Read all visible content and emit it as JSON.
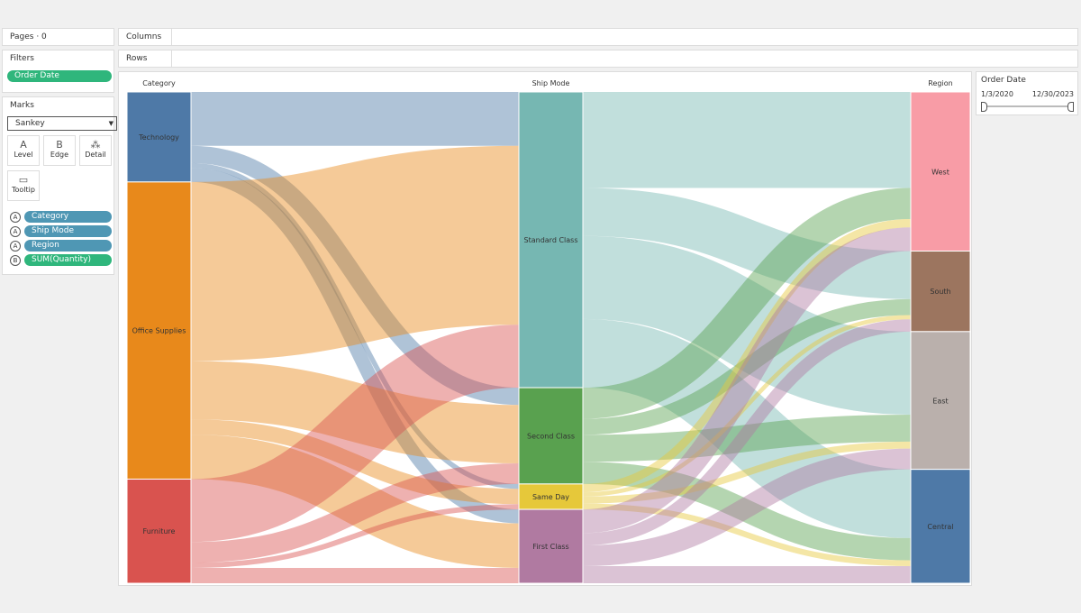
{
  "shelves": {
    "pages": "Pages · 0",
    "filters": "Filters",
    "filter_pill": "Order Date",
    "columns": "Columns",
    "rows": "Rows"
  },
  "marks": {
    "title": "Marks",
    "type": "Sankey",
    "cards": [
      {
        "label": "Level",
        "icon": "A"
      },
      {
        "label": "Edge",
        "icon": "B"
      },
      {
        "label": "Detail",
        "icon": "⁂"
      },
      {
        "label": "Tooltip",
        "icon": "▭"
      }
    ],
    "fields": [
      {
        "badge": "A",
        "label": "Category",
        "color": "#4f97b4"
      },
      {
        "badge": "A",
        "label": "Ship Mode",
        "color": "#4f97b4"
      },
      {
        "badge": "A",
        "label": "Region",
        "color": "#4f97b4"
      },
      {
        "badge": "B",
        "label": "SUM(Quantity)",
        "color": "#2fb67c"
      }
    ]
  },
  "filter_card": {
    "title": "Order Date",
    "start": "1/3/2020",
    "end": "12/30/2023",
    "range": [
      0,
      1
    ]
  },
  "chart_data": {
    "type": "sankey",
    "levels": [
      "Category",
      "Ship Mode",
      "Region"
    ],
    "nodes": [
      {
        "name": "Technology",
        "level": 0,
        "color": "#4e79a7"
      },
      {
        "name": "Office Supplies",
        "level": 0,
        "color": "#e8891b"
      },
      {
        "name": "Furniture",
        "level": 0,
        "color": "#d9534f"
      },
      {
        "name": "Standard Class",
        "level": 1,
        "color": "#76b7b2"
      },
      {
        "name": "Second Class",
        "level": 1,
        "color": "#59a14f"
      },
      {
        "name": "Same Day",
        "level": 1,
        "color": "#e6c83a"
      },
      {
        "name": "First Class",
        "level": 1,
        "color": "#b07aa1"
      },
      {
        "name": "West",
        "level": 2,
        "color": "#f89ca6"
      },
      {
        "name": "South",
        "level": 2,
        "color": "#9c755f"
      },
      {
        "name": "East",
        "level": 2,
        "color": "#bab0ac"
      },
      {
        "name": "Central",
        "level": 2,
        "color": "#4e79a7"
      }
    ],
    "links": [
      [
        "Technology",
        "Standard Class",
        4150
      ],
      [
        "Technology",
        "Second Class",
        1330
      ],
      [
        "Technology",
        "Same Day",
        379
      ],
      [
        "Technology",
        "First Class",
        1080
      ],
      [
        "Office Supplies",
        "Standard Class",
        13800
      ],
      [
        "Office Supplies",
        "Second Class",
        4500
      ],
      [
        "Office Supplies",
        "Same Day",
        1176
      ],
      [
        "Office Supplies",
        "First Class",
        3430
      ],
      [
        "Furniture",
        "Standard Class",
        4847
      ],
      [
        "Furniture",
        "Second Class",
        1593
      ],
      [
        "Furniture",
        "Same Day",
        405
      ],
      [
        "Furniture",
        "First Class",
        1183
      ],
      [
        "Standard Class",
        "West",
        7400
      ],
      [
        "Standard Class",
        "South",
        3700
      ],
      [
        "Standard Class",
        "East",
        6400
      ],
      [
        "Standard Class",
        "Central",
        5297
      ],
      [
        "Second Class",
        "West",
        2400
      ],
      [
        "Second Class",
        "South",
        1230
      ],
      [
        "Second Class",
        "East",
        2080
      ],
      [
        "Second Class",
        "Central",
        1713
      ],
      [
        "Same Day",
        "West",
        640
      ],
      [
        "Same Day",
        "South",
        330
      ],
      [
        "Same Day",
        "East",
        540
      ],
      [
        "Same Day",
        "Central",
        450
      ],
      [
        "First Class",
        "West",
        1826
      ],
      [
        "First Class",
        "South",
        949
      ],
      [
        "First Class",
        "East",
        1598
      ],
      [
        "First Class",
        "Central",
        1320
      ]
    ]
  }
}
